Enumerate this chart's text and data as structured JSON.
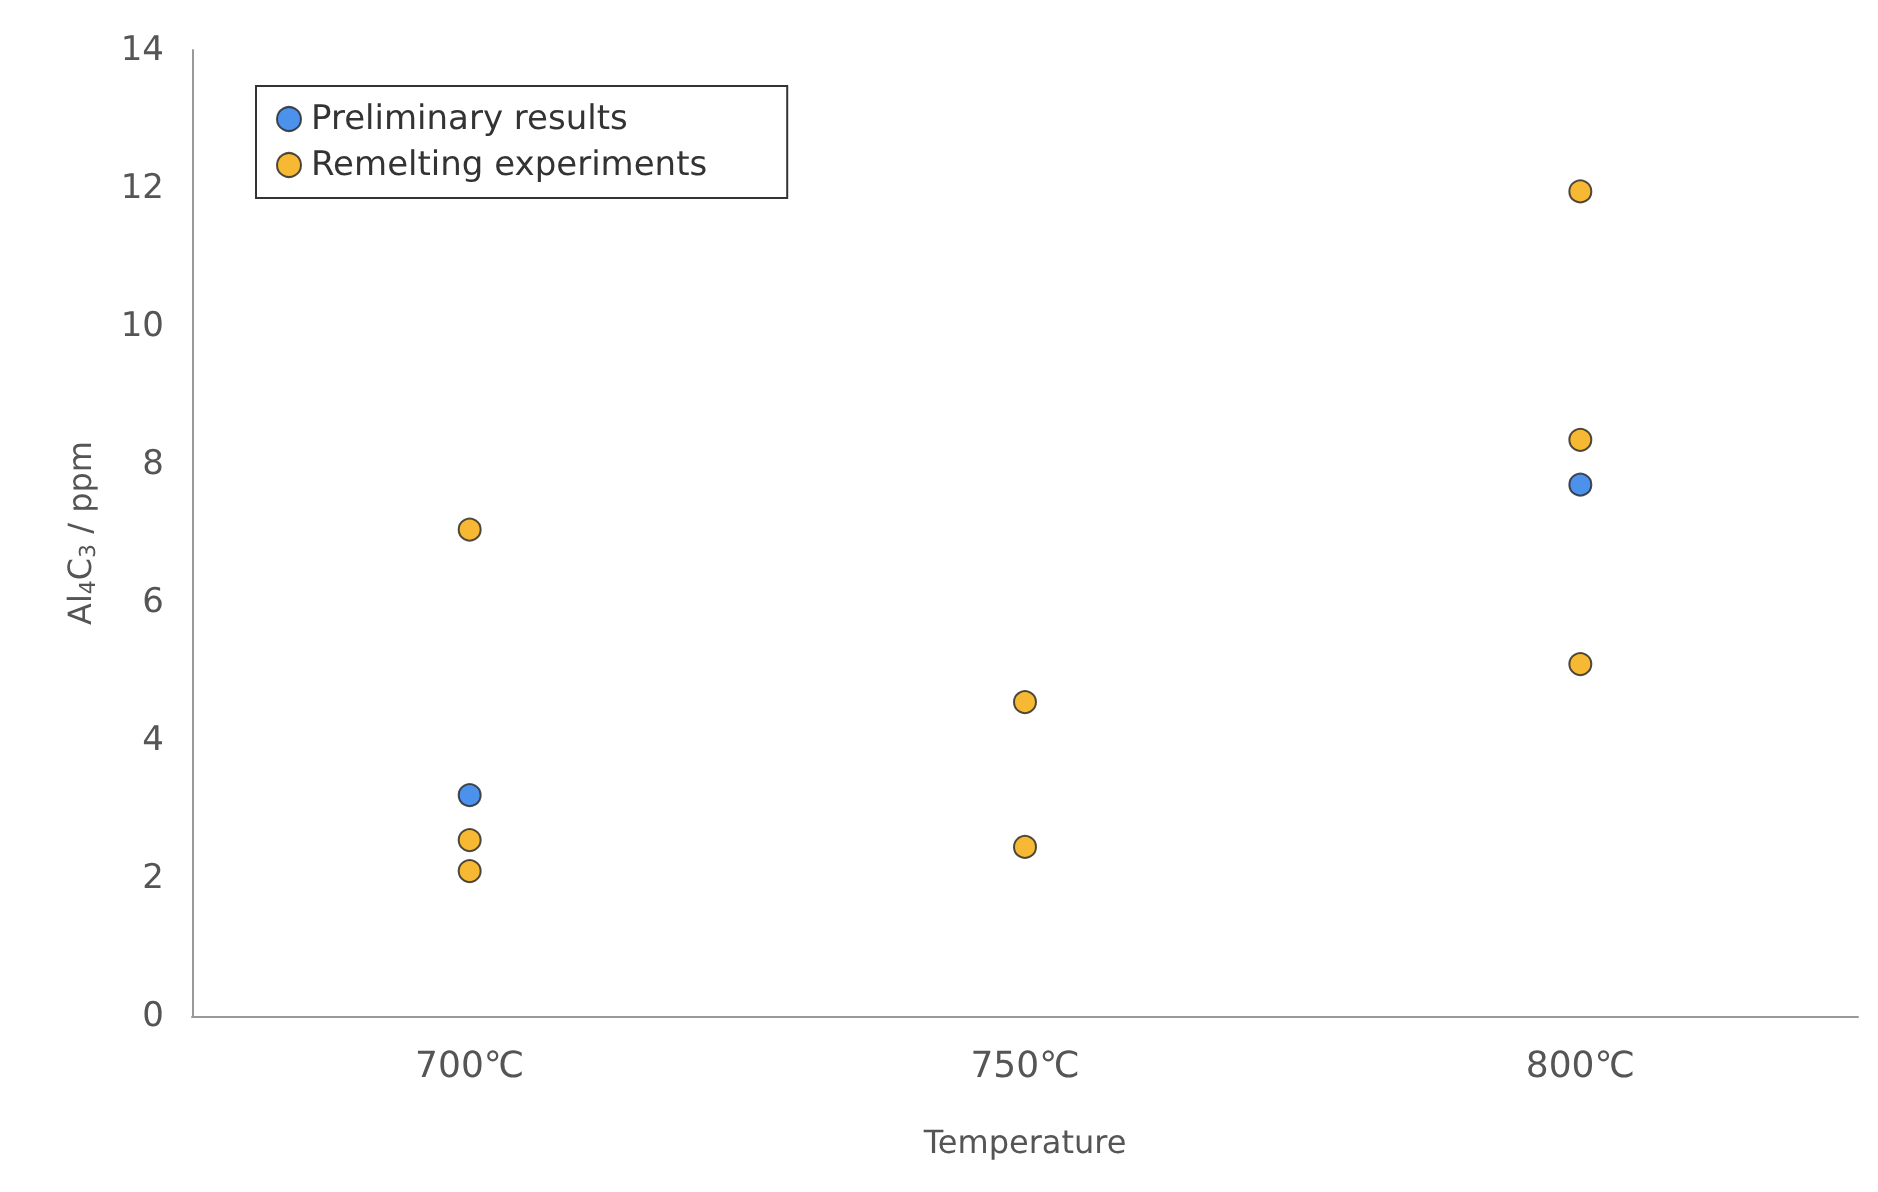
{
  "chart_data": {
    "type": "scatter",
    "xlabel": "Temperature",
    "ylabel": "Al$_{4}$C$_{3}$ / ppm",
    "categories": [
      "700℃",
      "750℃",
      "800℃"
    ],
    "ylim": [
      0,
      14
    ],
    "yticks": [
      0,
      2,
      4,
      6,
      8,
      10,
      12,
      14
    ],
    "grid": false,
    "legend": "top left",
    "marker": "circle",
    "series": [
      {
        "name": "Preliminary results",
        "color": "#1f77e8",
        "x": [
          "700℃",
          "800℃"
        ],
        "values": [
          3.2,
          7.7
        ]
      },
      {
        "name": "Remelting experiments",
        "color": "#f5a800",
        "x": [
          "700℃",
          "700℃",
          "700℃",
          "750℃",
          "750℃",
          "800℃",
          "800℃",
          "800℃"
        ],
        "values": [
          7.05,
          2.55,
          2.1,
          4.55,
          2.45,
          11.95,
          8.35,
          5.1
        ]
      }
    ]
  }
}
